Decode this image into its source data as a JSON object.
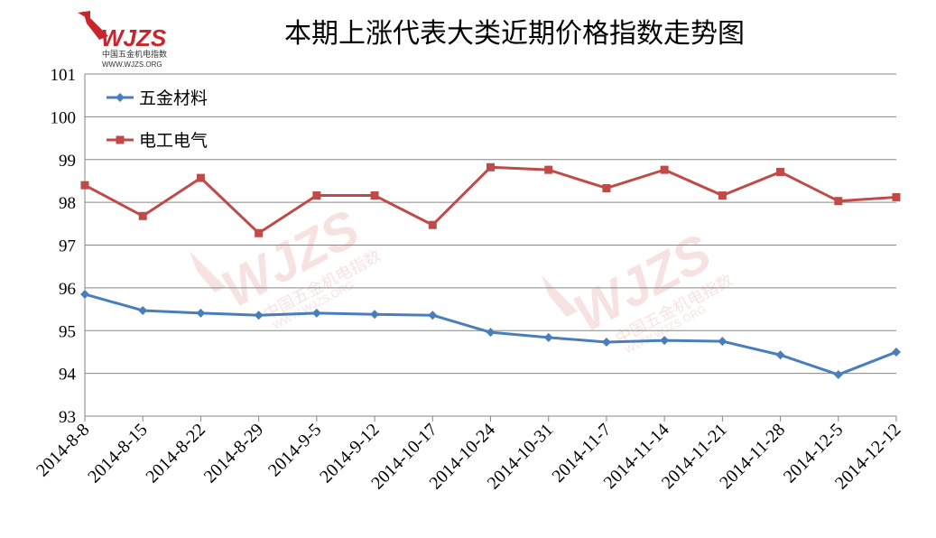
{
  "logo": {
    "mark": "WJZS",
    "subtitle": "中国五金机电指数",
    "url": "WWW.WJZS.ORG",
    "color": "#c8262c"
  },
  "chart_data": {
    "type": "line",
    "title": "本期上涨代表大类近期价格指数走势图",
    "categories": [
      "2014-8-8",
      "2014-8-15",
      "2014-8-22",
      "2014-8-29",
      "2014-9-5",
      "2014-9-12",
      "2014-10-17",
      "2014-10-24",
      "2014-10-31",
      "2014-11-7",
      "2014-11-14",
      "2014-11-21",
      "2014-11-28",
      "2014-12-5",
      "2014-12-12"
    ],
    "series": [
      {
        "name": "五金材料",
        "color": "#4a7ebb",
        "marker": "diamond",
        "values": [
          95.85,
          95.47,
          95.41,
          95.36,
          95.41,
          95.38,
          95.36,
          94.96,
          94.84,
          94.73,
          94.77,
          94.75,
          94.43,
          93.97,
          94.5
        ]
      },
      {
        "name": "电工电气",
        "color": "#be4b48",
        "marker": "square",
        "values": [
          98.4,
          97.68,
          98.57,
          97.28,
          98.16,
          98.16,
          97.47,
          98.82,
          98.76,
          98.33,
          98.76,
          98.16,
          98.71,
          98.03,
          98.12
        ]
      }
    ],
    "ylim": [
      93,
      101
    ],
    "yticks": [
      "93",
      "94",
      "95",
      "96",
      "97",
      "98",
      "99",
      "100",
      "101"
    ],
    "grid": true,
    "legend": "top-left"
  }
}
